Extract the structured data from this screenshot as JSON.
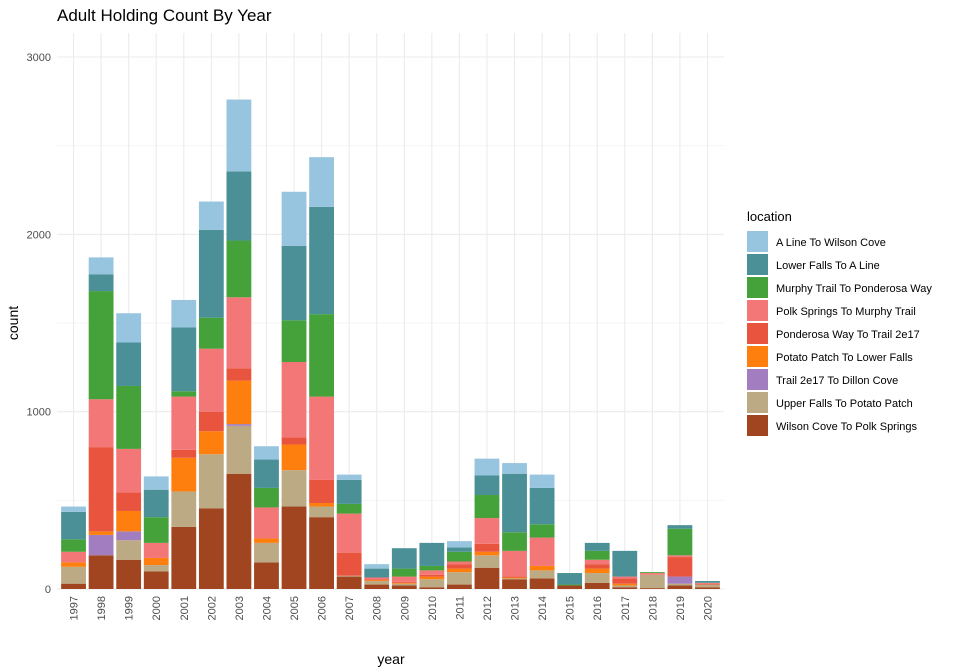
{
  "chart_data": {
    "type": "bar",
    "stacked": true,
    "title": "Adult Holding Count By Year",
    "xlabel": "year",
    "ylabel": "count",
    "ylim": [
      0,
      3000
    ],
    "yticks": [
      0,
      1000,
      2000,
      3000
    ],
    "grid": true,
    "legend_title": "location",
    "legend_position": "right",
    "categories": [
      "1997",
      "1998",
      "1999",
      "2000",
      "2001",
      "2002",
      "2003",
      "2004",
      "2005",
      "2006",
      "2007",
      "2008",
      "2009",
      "2010",
      "2011",
      "2012",
      "2013",
      "2014",
      "2015",
      "2016",
      "2017",
      "2018",
      "2019",
      "2020"
    ],
    "series": [
      {
        "name": "Wilson Cove To Polk Springs",
        "color": "#A0451F",
        "values": [
          30,
          190,
          165,
          100,
          350,
          455,
          650,
          150,
          465,
          405,
          70,
          25,
          20,
          10,
          25,
          120,
          55,
          60,
          20,
          35,
          10,
          5,
          20,
          10
        ]
      },
      {
        "name": "Upper Falls To Potato Patch",
        "color": "#BCAA85",
        "values": [
          95,
          0,
          110,
          35,
          200,
          305,
          270,
          110,
          205,
          60,
          5,
          20,
          10,
          45,
          70,
          70,
          5,
          45,
          0,
          55,
          10,
          75,
          10,
          15
        ]
      },
      {
        "name": "Trail 2e17 To Dillon Cove",
        "color": "#A27EC0",
        "values": [
          0,
          115,
          50,
          0,
          0,
          0,
          10,
          0,
          0,
          0,
          0,
          0,
          0,
          0,
          0,
          0,
          0,
          0,
          0,
          0,
          0,
          0,
          40,
          0
        ]
      },
      {
        "name": "Potato Patch To Lower Falls",
        "color": "#FF7F0E",
        "values": [
          25,
          20,
          115,
          40,
          190,
          130,
          245,
          25,
          145,
          20,
          0,
          5,
          5,
          15,
          20,
          20,
          5,
          25,
          0,
          25,
          10,
          0,
          0,
          0
        ]
      },
      {
        "name": "Ponderosa Way To Trail 2e17",
        "color": "#E8543E",
        "values": [
          0,
          475,
          105,
          0,
          45,
          110,
          70,
          0,
          40,
          130,
          130,
          5,
          5,
          10,
          25,
          45,
          5,
          0,
          0,
          25,
          30,
          0,
          110,
          5
        ]
      },
      {
        "name": "Polk Springs To Murphy Trail",
        "color": "#F37777",
        "values": [
          60,
          270,
          245,
          85,
          300,
          355,
          400,
          175,
          425,
          470,
          220,
          10,
          30,
          25,
          15,
          145,
          145,
          160,
          0,
          25,
          10,
          10,
          10,
          5
        ]
      },
      {
        "name": "Murphy Trail To Ponderosa Way",
        "color": "#45A23A",
        "values": [
          70,
          610,
          355,
          145,
          30,
          175,
          320,
          110,
          235,
          465,
          55,
          0,
          45,
          25,
          55,
          130,
          105,
          75,
          5,
          50,
          0,
          5,
          150,
          0
        ]
      },
      {
        "name": "Lower Falls To A Line",
        "color": "#4A9096",
        "values": [
          155,
          95,
          245,
          155,
          360,
          495,
          390,
          160,
          420,
          605,
          135,
          50,
          115,
          130,
          25,
          110,
          330,
          205,
          65,
          45,
          145,
          0,
          20,
          10
        ]
      },
      {
        "name": "A Line To Wilson Cove",
        "color": "#97C4DE",
        "values": [
          30,
          95,
          165,
          75,
          155,
          160,
          405,
          75,
          305,
          280,
          30,
          25,
          0,
          0,
          35,
          95,
          60,
          75,
          0,
          0,
          0,
          0,
          0,
          0
        ]
      }
    ],
    "legend_order": [
      "A Line To Wilson Cove",
      "Lower Falls To A Line",
      "Murphy Trail To Ponderosa Way",
      "Polk Springs To Murphy Trail",
      "Ponderosa Way To Trail 2e17",
      "Potato Patch To Lower Falls",
      "Trail 2e17 To Dillon Cove",
      "Upper Falls To Potato Patch",
      "Wilson Cove To Polk Springs"
    ]
  }
}
